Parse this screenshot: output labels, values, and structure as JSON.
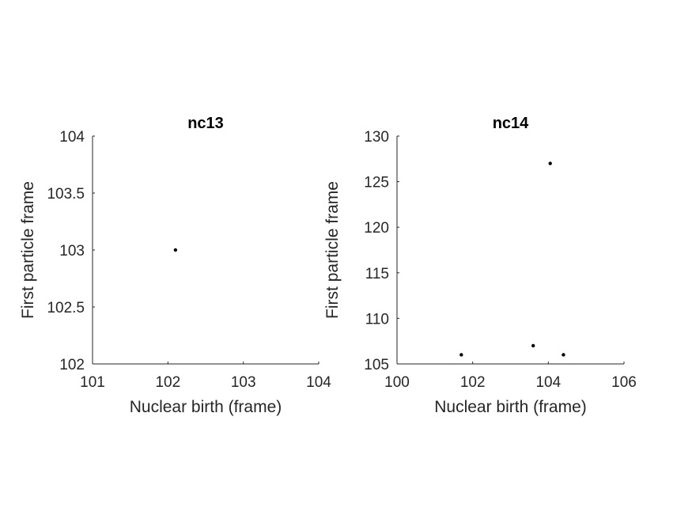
{
  "chart_data": [
    {
      "type": "scatter",
      "title": "nc13",
      "xlabel": "Nuclear birth (frame)",
      "ylabel": "First particle frame",
      "xlim": [
        101,
        104
      ],
      "ylim": [
        102,
        104
      ],
      "xticks": [
        101,
        102,
        103,
        104
      ],
      "yticks": [
        102,
        102.5,
        103,
        103.5,
        104
      ],
      "xtick_labels": [
        "101",
        "102",
        "103",
        "104"
      ],
      "ytick_labels": [
        "102",
        "102.5",
        "103",
        "103.5",
        "104"
      ],
      "grid": false,
      "points": [
        {
          "x": 102.1,
          "y": 103
        }
      ]
    },
    {
      "type": "scatter",
      "title": "nc14",
      "xlabel": "Nuclear birth (frame)",
      "ylabel": "First particle frame",
      "xlim": [
        100,
        106
      ],
      "ylim": [
        105,
        130
      ],
      "xticks": [
        100,
        102,
        104,
        106
      ],
      "yticks": [
        105,
        110,
        115,
        120,
        125,
        130
      ],
      "xtick_labels": [
        "100",
        "102",
        "104",
        "106"
      ],
      "ytick_labels": [
        "105",
        "110",
        "115",
        "120",
        "125",
        "130"
      ],
      "grid": false,
      "points": [
        {
          "x": 101.7,
          "y": 106
        },
        {
          "x": 103.6,
          "y": 107
        },
        {
          "x": 104.05,
          "y": 127
        },
        {
          "x": 104.4,
          "y": 106
        }
      ]
    }
  ],
  "colors": {
    "axis": "#262626",
    "marker": "#000000",
    "title": "#000000"
  }
}
